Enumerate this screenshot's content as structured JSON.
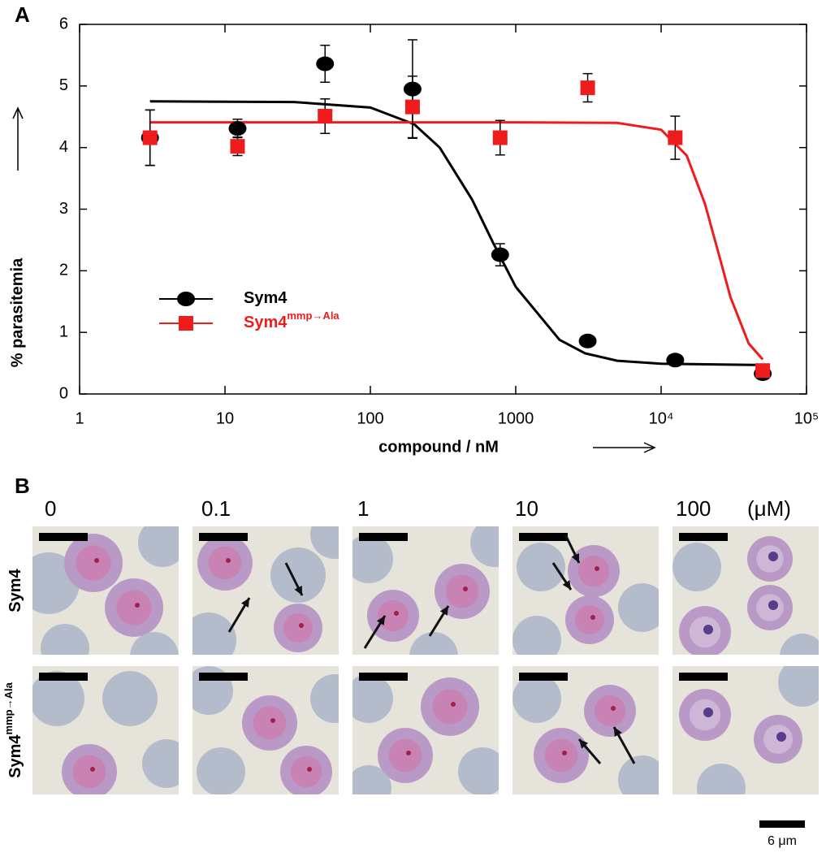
{
  "chart_data": {
    "type": "scatter",
    "panel_label": "A",
    "xlabel": "compound / nM",
    "ylabel": "% parasitemia",
    "xscale": "log",
    "xlim": [
      1,
      100000
    ],
    "ylim": [
      0,
      6
    ],
    "xticks": [
      1,
      10,
      100,
      1000,
      {
        "value": 10000,
        "label": "10⁴"
      },
      {
        "value": 100000,
        "label": "10⁵"
      }
    ],
    "yticks": [
      0,
      1,
      2,
      3,
      4,
      5,
      6
    ],
    "x": [
      3.05,
      12.2,
      48.8,
      195,
      781,
      3125,
      12500,
      50000
    ],
    "series": [
      {
        "name": "Sym4",
        "color": "#000000",
        "marker": "circle",
        "values": [
          4.16,
          4.31,
          5.36,
          4.95,
          2.26,
          0.86,
          0.55,
          0.33
        ],
        "errors": [
          0.45,
          0.15,
          0.3,
          0.8,
          0.18,
          0.05,
          0.05,
          0.05
        ],
        "fit_x": [
          3.05,
          30,
          100,
          200,
          300,
          500,
          700,
          1000,
          2000,
          3000,
          5000,
          10000,
          50000
        ],
        "fit_y": [
          4.75,
          4.74,
          4.65,
          4.38,
          4.0,
          3.16,
          2.45,
          1.74,
          0.88,
          0.66,
          0.54,
          0.49,
          0.47
        ]
      },
      {
        "name": "Sym4",
        "name_superscript": "mmp→Ala",
        "color": "#ee1c1c",
        "marker": "square",
        "values": [
          4.16,
          4.02,
          4.51,
          4.66,
          4.16,
          4.97,
          4.16,
          0.38
        ],
        "errors": [
          0.45,
          0.15,
          0.28,
          0.5,
          0.28,
          0.23,
          0.35,
          0.05
        ],
        "fit_x": [
          3.05,
          1000,
          5000,
          10000,
          15000,
          20000,
          25000,
          30000,
          40000,
          50000
        ],
        "fit_y": [
          4.41,
          4.41,
          4.4,
          4.29,
          3.87,
          3.09,
          2.26,
          1.57,
          0.82,
          0.56
        ]
      }
    ]
  },
  "panel_b": {
    "panel_label": "B",
    "concentrations": [
      "0",
      "0.1",
      "1",
      "10",
      "100"
    ],
    "unit": "(μM)",
    "rows": [
      {
        "label": "Sym4"
      },
      {
        "label": "Sym4",
        "label_superscript": "mmp→Ala"
      }
    ],
    "scale_bar": "6 μm"
  }
}
